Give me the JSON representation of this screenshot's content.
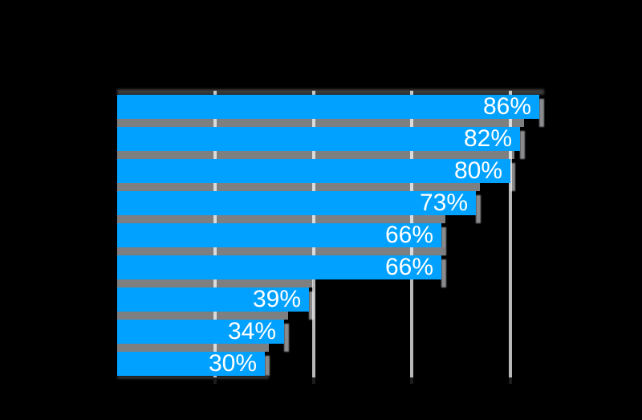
{
  "chart_data": {
    "type": "bar",
    "orientation": "horizontal",
    "title": "",
    "values": [
      86,
      82,
      80,
      73,
      66,
      66,
      39,
      34,
      30
    ],
    "labels": [
      "86%",
      "82%",
      "80%",
      "73%",
      "66%",
      "66%",
      "39%",
      "34%",
      "30%"
    ],
    "x_axis": {
      "min": 0,
      "unit": "%",
      "gridlines_pct": [
        20,
        40,
        60,
        80
      ]
    },
    "legend": "none",
    "grid": "vertical",
    "notes": "category labels, title and axis tick labels are black on black background (not visible)"
  },
  "colors": {
    "background": "#000000",
    "bar_fill": "#00A1FF",
    "bar_shadow": "#7E7F81",
    "bar_shadow_strip": "#8A8B8D",
    "top_halo": "#3A3A3A",
    "bottom_fade": "#2E2E2E",
    "gridline": "rgba(255,255,255,0.72)",
    "axis_tick": "#1C1C1C",
    "data_label": "#FFFFFF"
  }
}
